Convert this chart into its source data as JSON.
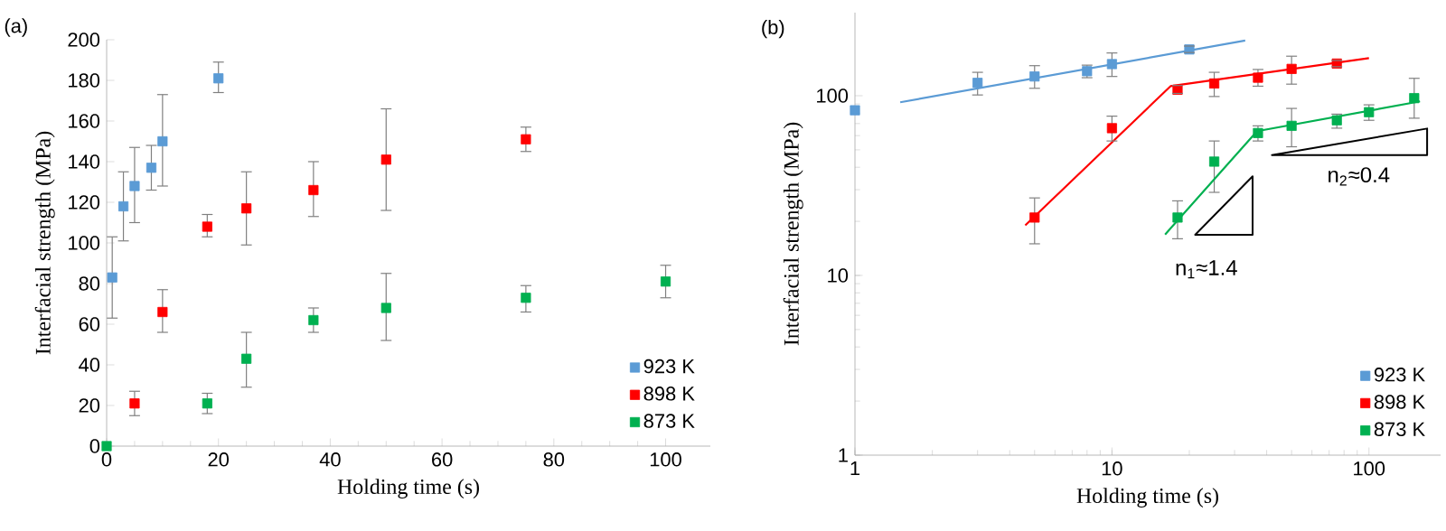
{
  "chart_data": [
    {
      "type": "scatter",
      "title": "(a)",
      "xlabel": "Holding time (s)",
      "ylabel": "Interfacial strength (MPa)",
      "xlim": [
        0,
        108
      ],
      "ylim": [
        0,
        200
      ],
      "xticks": [
        0,
        20,
        40,
        60,
        80,
        100
      ],
      "yticks": [
        0,
        20,
        40,
        60,
        80,
        100,
        120,
        140,
        160,
        180,
        200
      ],
      "marker": "square",
      "legend": "bottom right",
      "series": [
        {
          "name": "923 K",
          "color": "#5b9bd5",
          "x": [
            1,
            3,
            5,
            8,
            10,
            20
          ],
          "values": [
            83,
            118,
            128,
            137,
            150,
            181
          ],
          "errors": [
            [
              63,
              103
            ],
            [
              101,
              135
            ],
            [
              110,
              147
            ],
            [
              126,
              148
            ],
            [
              128,
              173
            ],
            [
              174,
              189
            ]
          ]
        },
        {
          "name": "898 K",
          "color": "#ff0000",
          "x": [
            5,
            10,
            18,
            25,
            37,
            50,
            75
          ],
          "values": [
            21,
            66,
            108,
            117,
            126,
            141,
            151
          ],
          "errors": [
            [
              15,
              27
            ],
            [
              56,
              77
            ],
            [
              103,
              114
            ],
            [
              99,
              135
            ],
            [
              113,
              140
            ],
            [
              116,
              166
            ],
            [
              145,
              157
            ]
          ]
        },
        {
          "name": "873 K",
          "color": "#00b050",
          "x": [
            0,
            18,
            25,
            37,
            50,
            75,
            100
          ],
          "values": [
            0,
            21,
            43,
            62,
            68,
            73,
            81
          ],
          "errors": [
            null,
            [
              16,
              26
            ],
            [
              29,
              56
            ],
            [
              56,
              68
            ],
            [
              52,
              85
            ],
            [
              66,
              79
            ],
            [
              73,
              89
            ]
          ]
        }
      ]
    },
    {
      "type": "scatter",
      "title": "(b)",
      "xlabel": "Holding time (s)",
      "ylabel": "Interfacial strength (MPa)",
      "log": "xy",
      "xlim": [
        1,
        190
      ],
      "ylim": [
        1,
        290
      ],
      "xticks": [
        1,
        10,
        100
      ],
      "yticks": [
        1,
        10,
        100
      ],
      "marker": "square",
      "legend": "bottom right",
      "annotations": [
        "n$_{1}$≈1.4",
        "n$_{2}$≈0.4"
      ],
      "series": [
        {
          "name": "923 K",
          "color": "#5b9bd5",
          "x": [
            1,
            3,
            5,
            8,
            10,
            20
          ],
          "values": [
            83,
            118,
            128,
            137,
            150,
            181
          ],
          "errors": [
            null,
            [
              101,
              135
            ],
            [
              110,
              147
            ],
            [
              126,
              148
            ],
            [
              128,
              173
            ],
            [
              174,
              189
            ]
          ]
        },
        {
          "name": "898 K",
          "color": "#ff0000",
          "x": [
            5,
            10,
            18,
            25,
            37,
            50,
            75
          ],
          "values": [
            21,
            66,
            108,
            117,
            126,
            141,
            151
          ],
          "errors": [
            [
              15,
              27
            ],
            [
              56,
              77
            ],
            [
              103,
              114
            ],
            [
              99,
              135
            ],
            [
              113,
              140
            ],
            [
              116,
              166
            ],
            [
              145,
              157
            ]
          ]
        },
        {
          "name": "873 K",
          "color": "#00b050",
          "x": [
            18,
            25,
            37,
            50,
            75,
            100,
            150
          ],
          "values": [
            21,
            43,
            62,
            68,
            73,
            81,
            97
          ],
          "errors": [
            [
              16,
              26
            ],
            [
              29,
              56
            ],
            [
              56,
              68
            ],
            [
              52,
              85
            ],
            [
              66,
              79
            ],
            [
              73,
              89
            ],
            [
              75,
              125
            ]
          ]
        },
        {
          "type": "line",
          "marker": "none",
          "color": "#5b9bd5",
          "x": [
            1.5,
            33
          ],
          "values": [
            92,
            203
          ]
        },
        {
          "type": "line",
          "marker": "none",
          "color": "#ff0000",
          "x": [
            4.6,
            16.9,
            100
          ],
          "values": [
            19,
            113,
            162
          ]
        },
        {
          "type": "line",
          "marker": "none",
          "color": "#00b050",
          "x": [
            16.1,
            36.7,
            158
          ],
          "values": [
            16.9,
            63.5,
            93
          ]
        }
      ]
    }
  ]
}
